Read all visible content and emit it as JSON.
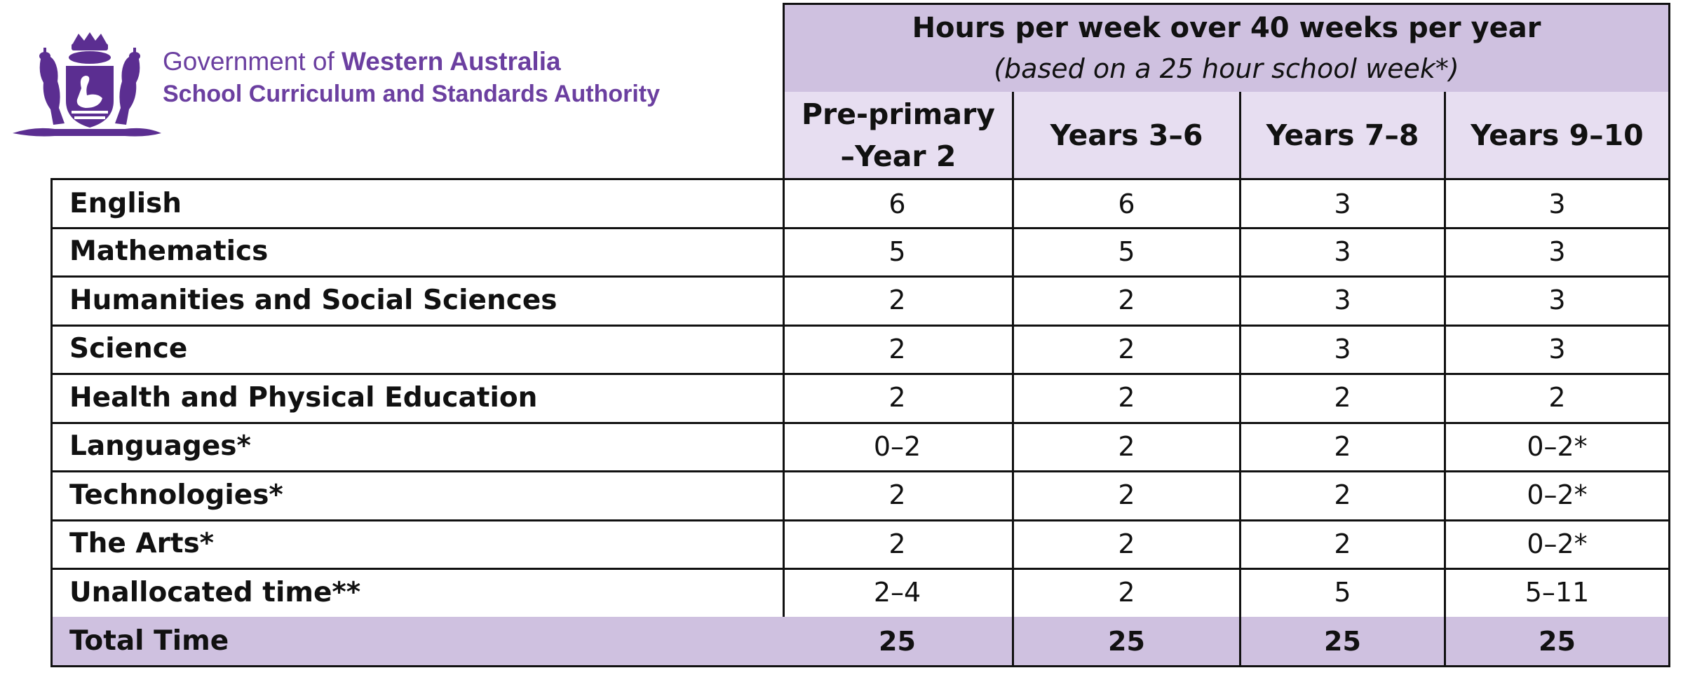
{
  "header": {
    "org_line1_prefix": "Government of ",
    "org_line1_bold": "Western Australia",
    "org_line2": "School Curriculum and Standards Authority",
    "logo_icon": "wa-coat-of-arms-icon"
  },
  "table": {
    "title": "Hours per week over 40 weeks per year",
    "subtitle": "(based on a 25 hour school week*)",
    "columns": [
      "Pre-primary –Year 2",
      "Years 3–6",
      "Years 7–8",
      "Years 9–10"
    ],
    "rows": [
      {
        "label": "English",
        "values": [
          "6",
          "6",
          "3",
          "3"
        ]
      },
      {
        "label": "Mathematics",
        "values": [
          "5",
          "5",
          "3",
          "3"
        ]
      },
      {
        "label": "Humanities and Social Sciences",
        "values": [
          "2",
          "2",
          "3",
          "3"
        ]
      },
      {
        "label": "Science",
        "values": [
          "2",
          "2",
          "3",
          "3"
        ]
      },
      {
        "label": "Health and Physical Education",
        "values": [
          "2",
          "2",
          "2",
          "2"
        ]
      },
      {
        "label": "Languages*",
        "values": [
          "0–2",
          "2",
          "2",
          "0–2*"
        ]
      },
      {
        "label": "Technologies*",
        "values": [
          "2",
          "2",
          "2",
          "0–2*"
        ]
      },
      {
        "label": "The Arts*",
        "values": [
          "2",
          "2",
          "2",
          "0–2*"
        ]
      },
      {
        "label": "Unallocated time**",
        "values": [
          "2–4",
          "2",
          "5",
          "5–11"
        ]
      },
      {
        "label": "Total Time",
        "values": [
          "25",
          "25",
          "25",
          "25"
        ]
      }
    ]
  },
  "colors": {
    "brand_purple": "#6b3fa0",
    "header_fill": "#cfc1e0",
    "subheader_fill": "#e7def1"
  }
}
